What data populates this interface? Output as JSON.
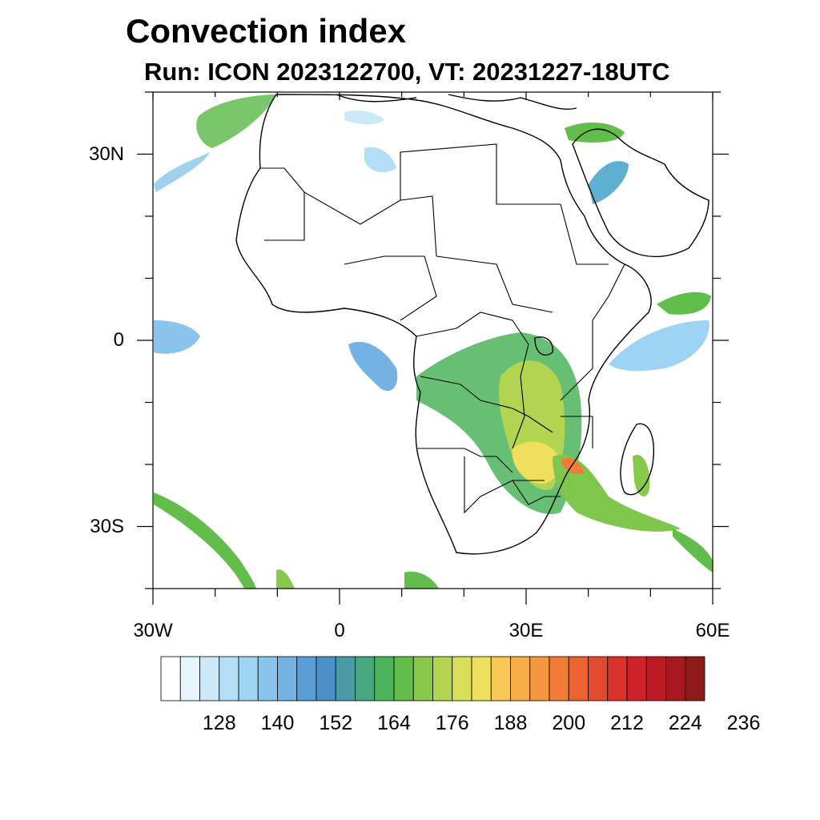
{
  "title": "Convection index",
  "subtitle": "Run: ICON 2023122700,  VT: 20231227-18UTC",
  "map": {
    "lon_range": [
      -30,
      60
    ],
    "lat_range": [
      -40,
      40
    ],
    "lat_labels": [
      {
        "lat": 30,
        "label": "30N"
      },
      {
        "lat": 0,
        "label": "0"
      },
      {
        "lat": -30,
        "label": "30S"
      }
    ],
    "lon_labels": [
      {
        "lon": -30,
        "label": "30W"
      },
      {
        "lon": 0,
        "label": "0"
      },
      {
        "lon": 30,
        "label": "30E"
      },
      {
        "lon": 60,
        "label": "60E"
      }
    ]
  },
  "colorbar": {
    "colors": [
      "#ffffff",
      "#e6f4fb",
      "#cbe9f8",
      "#b4def5",
      "#9dd4f3",
      "#8ac4ec",
      "#75b2e4",
      "#5a9ed8",
      "#4c90c8",
      "#4a9aa8",
      "#48a680",
      "#4cb45c",
      "#62bd4a",
      "#88c84c",
      "#b2d450",
      "#d8df58",
      "#eee05c",
      "#f7c855",
      "#f7ad48",
      "#f59640",
      "#f07c38",
      "#ea6330",
      "#e24a2c",
      "#d8322a",
      "#cc2228",
      "#bc1a24",
      "#a81820",
      "#8f1a1c"
    ],
    "labels": [
      "128",
      "140",
      "152",
      "164",
      "176",
      "188",
      "200",
      "212",
      "224",
      "236"
    ]
  }
}
